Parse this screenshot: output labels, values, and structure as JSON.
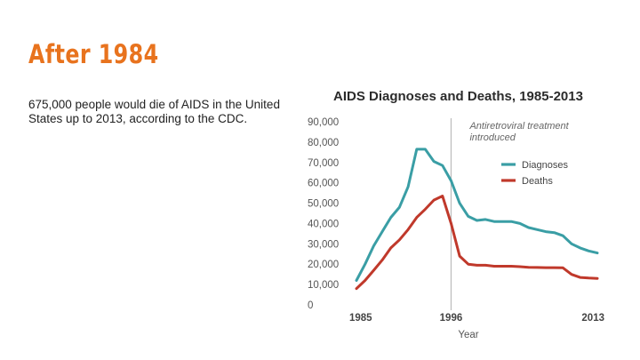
{
  "slide": {
    "title": "After 1984",
    "body": "675,000 people would die of AIDS in the United States up to 2013, according to the CDC."
  },
  "colors": {
    "title": "#e8731e",
    "diagnoses": "#3a9ea5",
    "deaths": "#c0392b",
    "annotation_line": "#bbbbbb"
  },
  "chart_data": {
    "type": "line",
    "title": "AIDS Diagnoses and Deaths, 1985-2013",
    "xlabel": "Year",
    "ylabel": "",
    "xlim": [
      1985,
      2013
    ],
    "ylim": [
      0,
      90000
    ],
    "y_ticks": [
      "0",
      "10,000",
      "20,000",
      "30,000",
      "40,000",
      "50,000",
      "60,000",
      "70,000",
      "80,000",
      "90,000"
    ],
    "x_tick_labels": [
      {
        "year": 1985,
        "label": "1985"
      },
      {
        "year": 1996,
        "label": "1996"
      },
      {
        "year": 2013,
        "label": "2013"
      }
    ],
    "x": [
      1985,
      1986,
      1987,
      1988,
      1989,
      1990,
      1991,
      1992,
      1993,
      1994,
      1995,
      1996,
      1997,
      1998,
      1999,
      2000,
      2001,
      2002,
      2003,
      2004,
      2005,
      2006,
      2007,
      2008,
      2009,
      2010,
      2011,
      2012,
      2013
    ],
    "series": [
      {
        "name": "Diagnoses",
        "color": "#3a9ea5",
        "values": [
          12000,
          20000,
          29000,
          36000,
          43000,
          48000,
          58000,
          76500,
          76500,
          70500,
          68500,
          61000,
          50000,
          43500,
          41500,
          42000,
          41000,
          41000,
          41000,
          40000,
          38000,
          37000,
          36000,
          35500,
          34000,
          30000,
          28000,
          26500,
          25500
        ]
      },
      {
        "name": "Deaths",
        "color": "#c0392b",
        "values": [
          8000,
          12000,
          17000,
          22000,
          28000,
          32000,
          37000,
          43000,
          47000,
          51500,
          53500,
          40000,
          24000,
          20000,
          19500,
          19500,
          19000,
          19000,
          19000,
          18800,
          18500,
          18400,
          18300,
          18300,
          18200,
          15000,
          13500,
          13200,
          13000
        ]
      }
    ],
    "annotation": {
      "year": 1996,
      "lines": [
        "Antiretroviral treatment",
        "introduced"
      ]
    },
    "legend": [
      "Diagnoses",
      "Deaths"
    ]
  }
}
